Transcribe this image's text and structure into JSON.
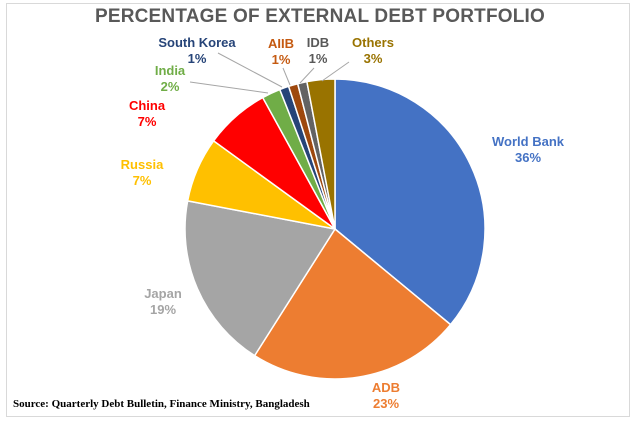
{
  "chart_data": {
    "type": "pie",
    "title": "PERCENTAGE OF EXTERNAL DEBT PORTFOLIO",
    "source": "Source:  Quarterly Debt Bulletin, Finance Ministry, Bangladesh",
    "slices": [
      {
        "name": "World Bank",
        "value": 36,
        "pct": "36%",
        "color": "#4472C4"
      },
      {
        "name": "ADB",
        "value": 23,
        "pct": "23%",
        "color": "#ED7D31"
      },
      {
        "name": "Japan",
        "value": 19,
        "pct": "19%",
        "color": "#A5A5A5"
      },
      {
        "name": "Russia",
        "value": 7,
        "pct": "7%",
        "color": "#FFC000"
      },
      {
        "name": "China",
        "value": 7,
        "pct": "7%",
        "color": "#FF0000"
      },
      {
        "name": "India",
        "value": 2,
        "pct": "2%",
        "color": "#70AD47"
      },
      {
        "name": "South Korea",
        "value": 1,
        "pct": "1%",
        "color": "#264478"
      },
      {
        "name": "AIIB",
        "value": 1,
        "pct": "1%",
        "color": "#9E480E"
      },
      {
        "name": "IDB",
        "value": 1,
        "pct": "1%",
        "color": "#636363"
      },
      {
        "name": "Others",
        "value": 3,
        "pct": "3%",
        "color": "#997300"
      }
    ],
    "label_colors": {
      "World Bank": "#4472C4",
      "ADB": "#ED7D31",
      "Japan": "#A5A5A5",
      "Russia": "#FFC000",
      "China": "#FF0000",
      "India": "#70AD47",
      "South Korea": "#264478",
      "AIIB": "#C55A11",
      "IDB": "#595959",
      "Others": "#997300"
    }
  }
}
